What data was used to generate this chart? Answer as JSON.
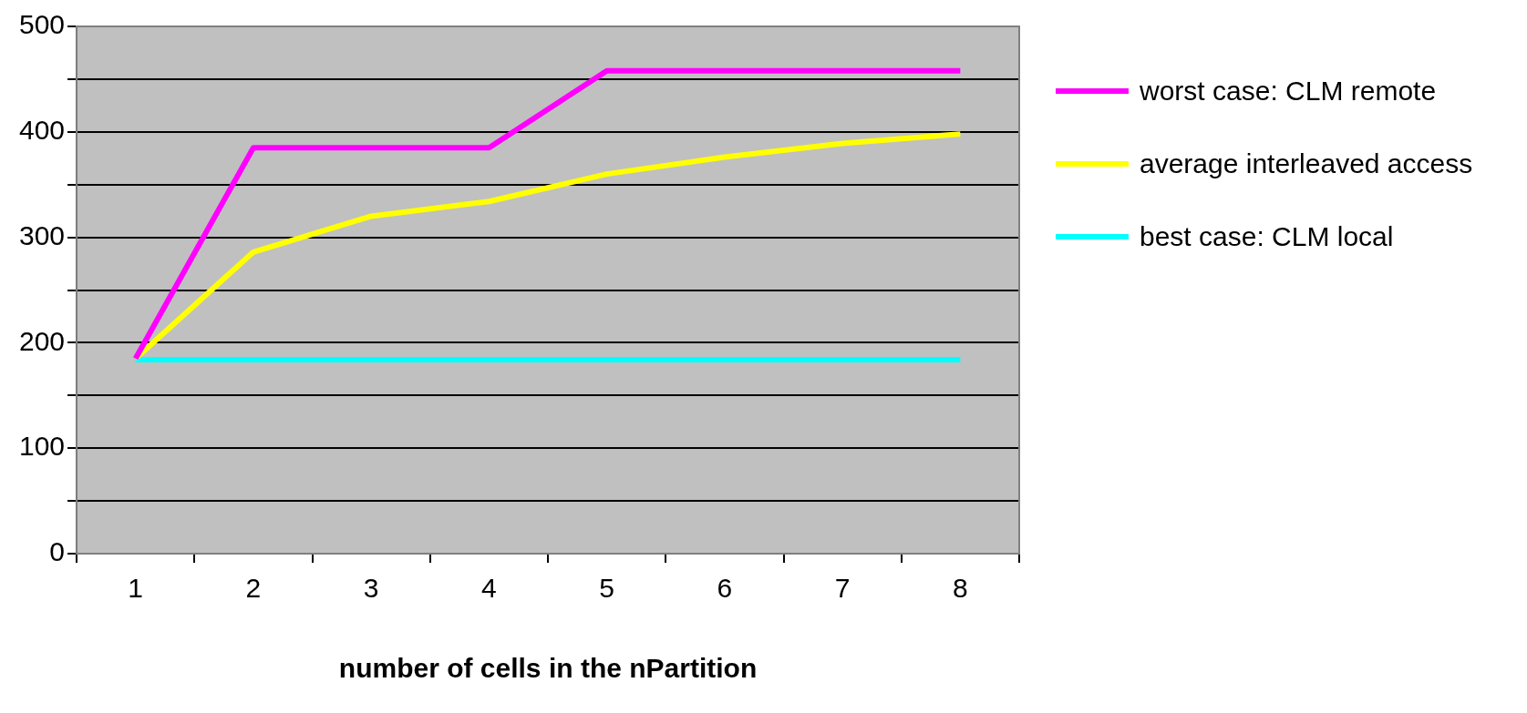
{
  "chart_data": {
    "type": "line",
    "xlabel": "number of cells in the nPartition",
    "categories": [
      "1",
      "2",
      "3",
      "4",
      "5",
      "6",
      "7",
      "8"
    ],
    "series": [
      {
        "name": "worst case: CLM remote",
        "color": "#ff00ff",
        "values": [
          185,
          385,
          385,
          385,
          458,
          458,
          458,
          458
        ]
      },
      {
        "name": "average interleaved access",
        "color": "#ffff00",
        "values": [
          185,
          286,
          320,
          334,
          360,
          376,
          389,
          398
        ]
      },
      {
        "name": "best case: CLM local",
        "color": "#00ffff",
        "values": [
          184,
          184,
          184,
          184,
          184,
          184,
          184,
          184
        ]
      }
    ],
    "ylim": [
      0,
      500
    ],
    "yticks": [
      0,
      {
        "value": 50,
        "label": null
      },
      100,
      {
        "value": 150,
        "label": null
      },
      200,
      {
        "value": 250,
        "label": null
      },
      300,
      {
        "value": 350,
        "label": null
      },
      400,
      {
        "value": 450,
        "label": null
      },
      500
    ],
    "grid": "y",
    "legend": "right",
    "marker": "none",
    "line_style": "solid"
  }
}
